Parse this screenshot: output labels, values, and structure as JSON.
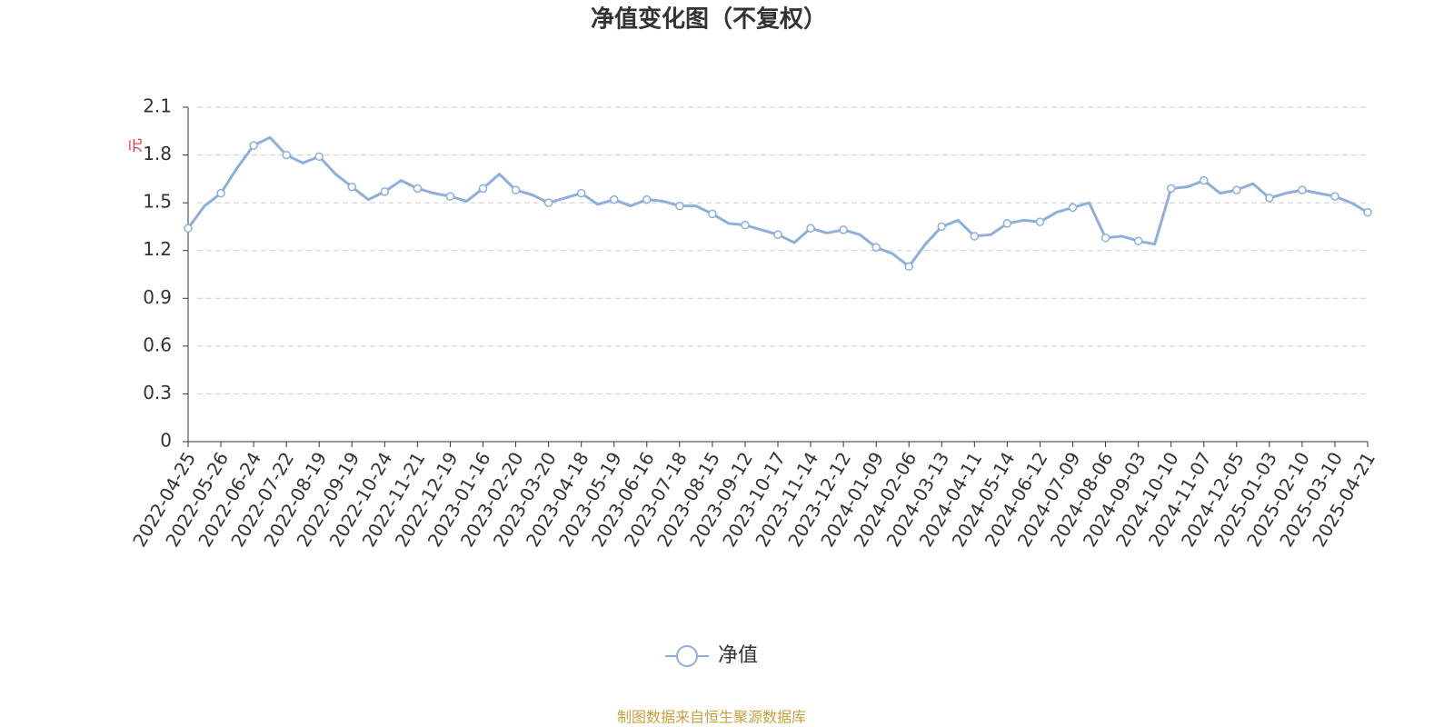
{
  "chart_data": {
    "type": "line",
    "title": "净值变化图（不复权）",
    "y_unit": "元",
    "source": "制图数据来自恒生聚源数据库",
    "categories": [
      "2022-04-25",
      null,
      "2022-05-26",
      null,
      "2022-06-24",
      null,
      "2022-07-22",
      null,
      "2022-08-19",
      null,
      "2022-09-19",
      null,
      "2022-10-24",
      null,
      "2022-11-21",
      null,
      "2022-12-19",
      null,
      "2023-01-16",
      null,
      "2023-02-20",
      null,
      "2023-03-20",
      null,
      "2023-04-18",
      null,
      "2023-05-19",
      null,
      "2023-06-16",
      null,
      "2023-07-18",
      null,
      "2023-08-15",
      null,
      "2023-09-12",
      null,
      "2023-10-17",
      null,
      "2023-11-14",
      null,
      "2023-12-12",
      null,
      "2024-01-09",
      null,
      "2024-02-06",
      null,
      "2024-03-13",
      null,
      "2024-04-11",
      null,
      "2024-05-14",
      null,
      "2024-06-12",
      null,
      "2024-07-09",
      null,
      "2024-08-06",
      null,
      "2024-09-03",
      null,
      "2024-10-10",
      null,
      "2024-11-07",
      null,
      "2024-12-05",
      null,
      "2025-01-03",
      null,
      "2025-02-10",
      null,
      "2025-03-10",
      null,
      "2025-04-21"
    ],
    "series": [
      {
        "name": "净值",
        "color": "#8eaedc",
        "values": [
          1.34,
          1.48,
          1.56,
          1.72,
          1.86,
          1.91,
          1.8,
          1.75,
          1.79,
          1.68,
          1.6,
          1.52,
          1.57,
          1.64,
          1.59,
          1.56,
          1.54,
          1.51,
          1.59,
          1.68,
          1.58,
          1.55,
          1.5,
          1.53,
          1.56,
          1.49,
          1.52,
          1.48,
          1.52,
          1.51,
          1.48,
          1.48,
          1.43,
          1.37,
          1.36,
          1.33,
          1.3,
          1.25,
          1.34,
          1.31,
          1.33,
          1.3,
          1.22,
          1.18,
          1.1,
          1.24,
          1.35,
          1.39,
          1.29,
          1.3,
          1.37,
          1.39,
          1.38,
          1.44,
          1.47,
          1.5,
          1.28,
          1.29,
          1.26,
          1.24,
          1.59,
          1.6,
          1.64,
          1.56,
          1.58,
          1.62,
          1.53,
          1.56,
          1.58,
          1.56,
          1.54,
          1.5,
          1.44
        ]
      }
    ],
    "ylim": [
      0,
      2.1
    ],
    "yticks": [
      0,
      0.3,
      0.6,
      0.9,
      1.2,
      1.5,
      1.8,
      2.1
    ],
    "grid": true
  }
}
